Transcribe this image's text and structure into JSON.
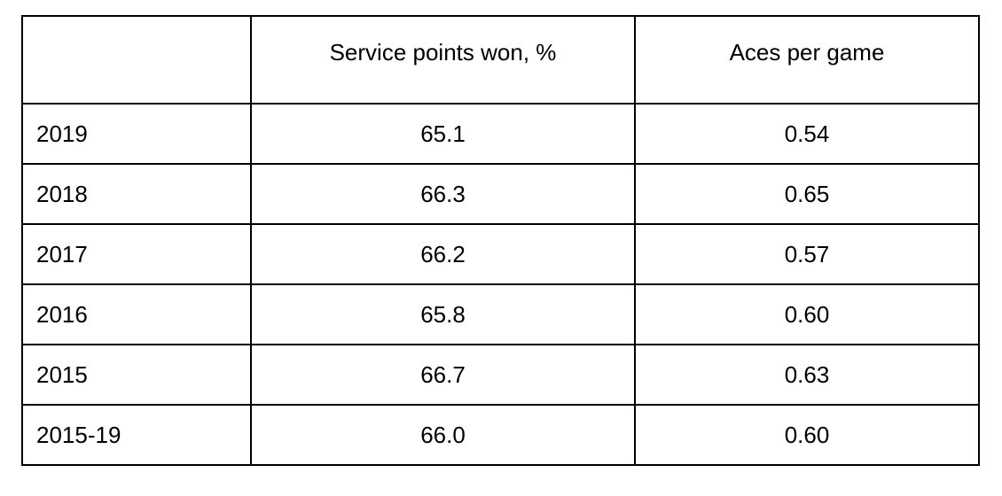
{
  "table": {
    "headers": [
      "",
      "Service points won, %",
      "Aces per game"
    ],
    "rows": [
      {
        "year": "2019",
        "service_points_won": "65.1",
        "aces_per_game": "0.54"
      },
      {
        "year": "2018",
        "service_points_won": "66.3",
        "aces_per_game": "0.65"
      },
      {
        "year": "2017",
        "service_points_won": "66.2",
        "aces_per_game": "0.57"
      },
      {
        "year": "2016",
        "service_points_won": "65.8",
        "aces_per_game": "0.60"
      },
      {
        "year": "2015",
        "service_points_won": "66.7",
        "aces_per_game": "0.63"
      },
      {
        "year": "2015-19",
        "service_points_won": "66.0",
        "aces_per_game": "0.60"
      }
    ]
  }
}
